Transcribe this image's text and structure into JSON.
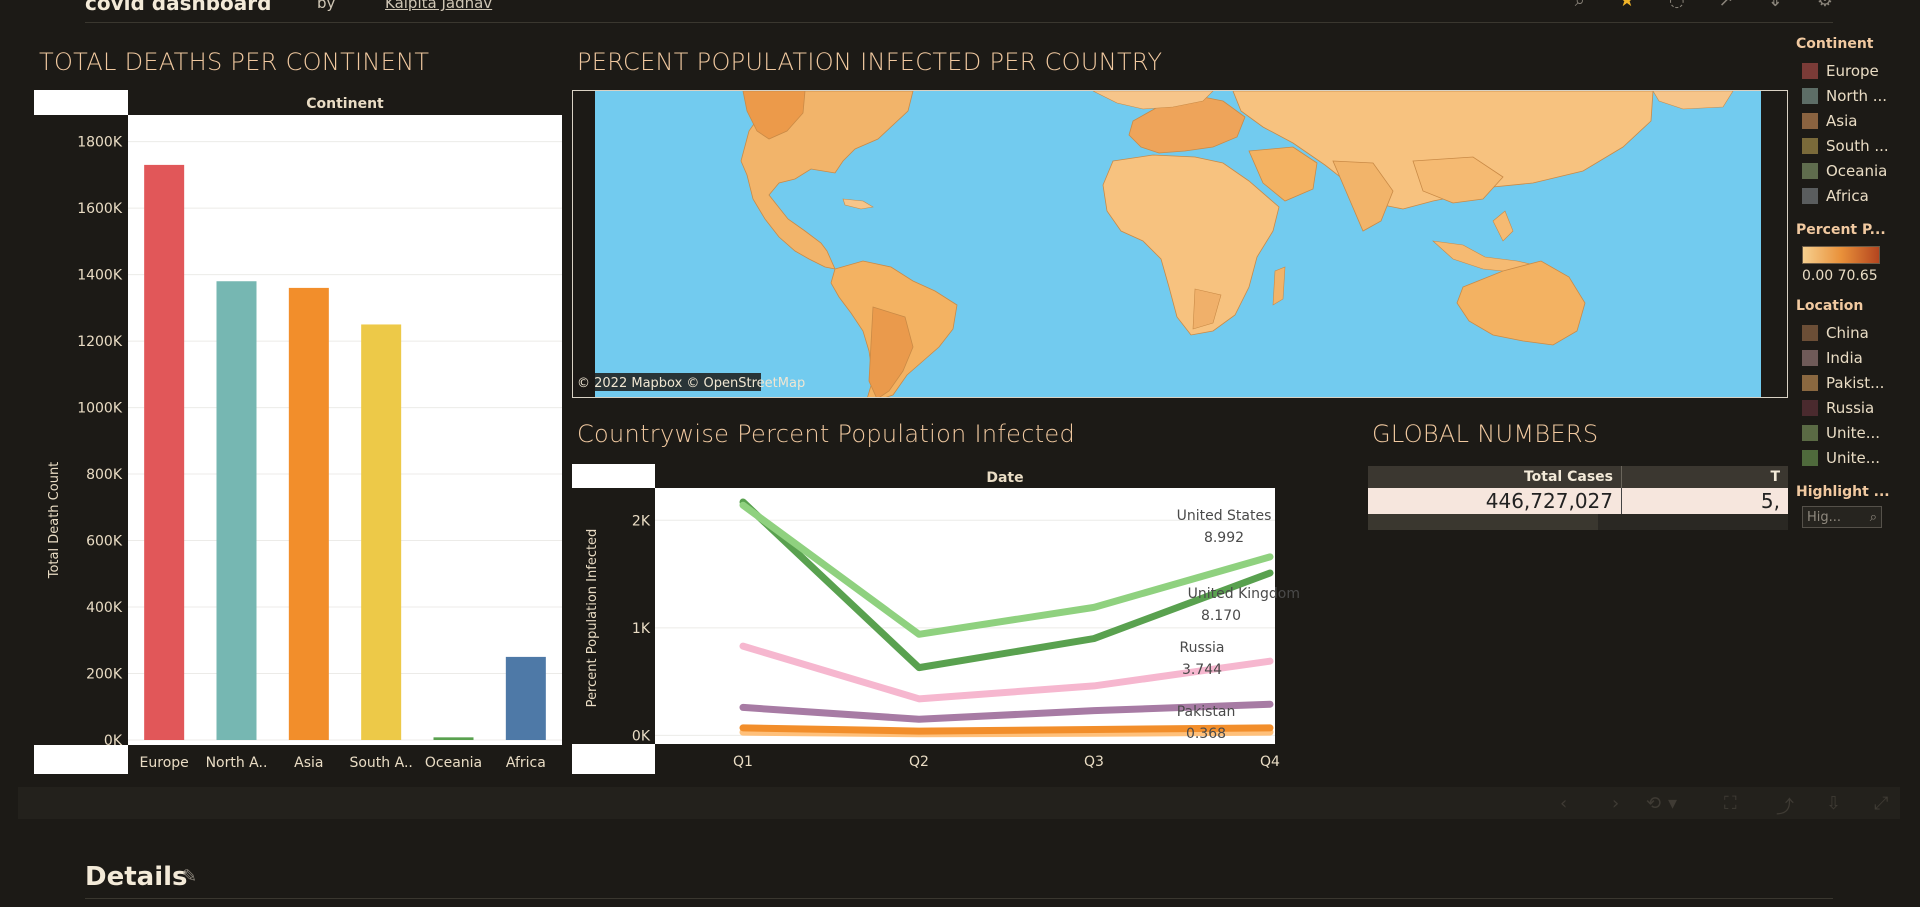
{
  "header": {
    "title": "covid dashboard",
    "by_label": "by",
    "author": "Kalpita Jadhav"
  },
  "deaths_chart": {
    "title": "TOTAL DEATHS PER CONTINENT",
    "column_header": "Continent",
    "ylabel": "Total Death Count",
    "y_ticks": [
      "0K",
      "200K",
      "400K",
      "600K",
      "800K",
      "1000K",
      "1200K",
      "1400K",
      "1600K",
      "1800K"
    ]
  },
  "map": {
    "title": "PERCENT POPULATION INFECTED PER COUNTRY",
    "attribution": "© 2022 Mapbox  © OpenStreetMap"
  },
  "line_chart": {
    "title": "Countrywise Percent Population Infected",
    "column_header": "Date",
    "ylabel": "Percent Population Infected",
    "y_ticks": [
      "0K",
      "1K",
      "2K"
    ],
    "annotations": [
      {
        "country": "United States",
        "value": "8.992"
      },
      {
        "country": "United Kingdom",
        "value": "8.170"
      },
      {
        "country": "Russia",
        "value": "3.744"
      },
      {
        "country": "Pakistan",
        "value": "0.368"
      }
    ]
  },
  "global_numbers": {
    "title": "GLOBAL NUMBERS",
    "col1_header": "Total Cases",
    "col2_header": "T",
    "col1_value": "446,727,027",
    "col2_value": "5,"
  },
  "legend": {
    "continent_title": "Continent",
    "continents": [
      {
        "label": "Europe",
        "color": "#7a3b37"
      },
      {
        "label": "North ...",
        "color": "#5d6d66"
      },
      {
        "label": "Asia",
        "color": "#8a6340"
      },
      {
        "label": "South ...",
        "color": "#7a6a3a"
      },
      {
        "label": "Oceania",
        "color": "#5f6c4d"
      },
      {
        "label": "Africa",
        "color": "#5a5d5e"
      }
    ],
    "percent_title": "Percent P...",
    "percent_range": "0.00 70.65",
    "location_title": "Location",
    "locations": [
      {
        "label": "China",
        "color": "#6b4e36"
      },
      {
        "label": "India",
        "color": "#6f5a58"
      },
      {
        "label": "Pakist...",
        "color": "#8a6840"
      },
      {
        "label": "Russia",
        "color": "#4a2a2e"
      },
      {
        "label": "Unite...",
        "color": "#5a6a44"
      },
      {
        "label": "Unite...",
        "color": "#4f6a3c"
      }
    ],
    "highlight_title": "Highlight ...",
    "highlight_placeholder": "Hig..."
  },
  "details": {
    "title": "Details"
  },
  "chart_data": [
    {
      "type": "bar",
      "title": "TOTAL DEATHS PER CONTINENT",
      "xlabel": "Continent",
      "ylabel": "Total Death Count",
      "categories": [
        "Europe",
        "North A..",
        "Asia",
        "South A..",
        "Oceania",
        "Africa"
      ],
      "values": [
        1730000,
        1380000,
        1360000,
        1250000,
        8000,
        250000
      ],
      "colors": [
        "#e15759",
        "#76b7b2",
        "#f28e2b",
        "#edc948",
        "#59a14f",
        "#4e79a7"
      ],
      "ylim": [
        0,
        1850000
      ],
      "grid": true
    },
    {
      "type": "line",
      "title": "Countrywise Percent Population Infected",
      "xlabel": "Date",
      "ylabel": "Percent Population Infected",
      "categories": [
        "Q1",
        "Q2",
        "Q3",
        "Q4"
      ],
      "ylim": [
        -80,
        2300
      ],
      "series": [
        {
          "name": "United States",
          "values": [
            2140,
            940,
            1190,
            1660
          ],
          "color": "#8fd17f"
        },
        {
          "name": "United Kingdom",
          "values": [
            2170,
            630,
            900,
            1510
          ],
          "color": "#59a14f"
        },
        {
          "name": "Russia",
          "values": [
            830,
            340,
            460,
            690
          ],
          "color": "#f6b7cf"
        },
        {
          "name": "Pakistan",
          "values": [
            260,
            150,
            230,
            290
          ],
          "color": "#a77ba4"
        },
        {
          "name": "China",
          "values": [
            70,
            40,
            55,
            70
          ],
          "color": "#f28e2b"
        },
        {
          "name": "India",
          "values": [
            30,
            15,
            20,
            30
          ],
          "color": "#ffc07a"
        }
      ]
    }
  ]
}
